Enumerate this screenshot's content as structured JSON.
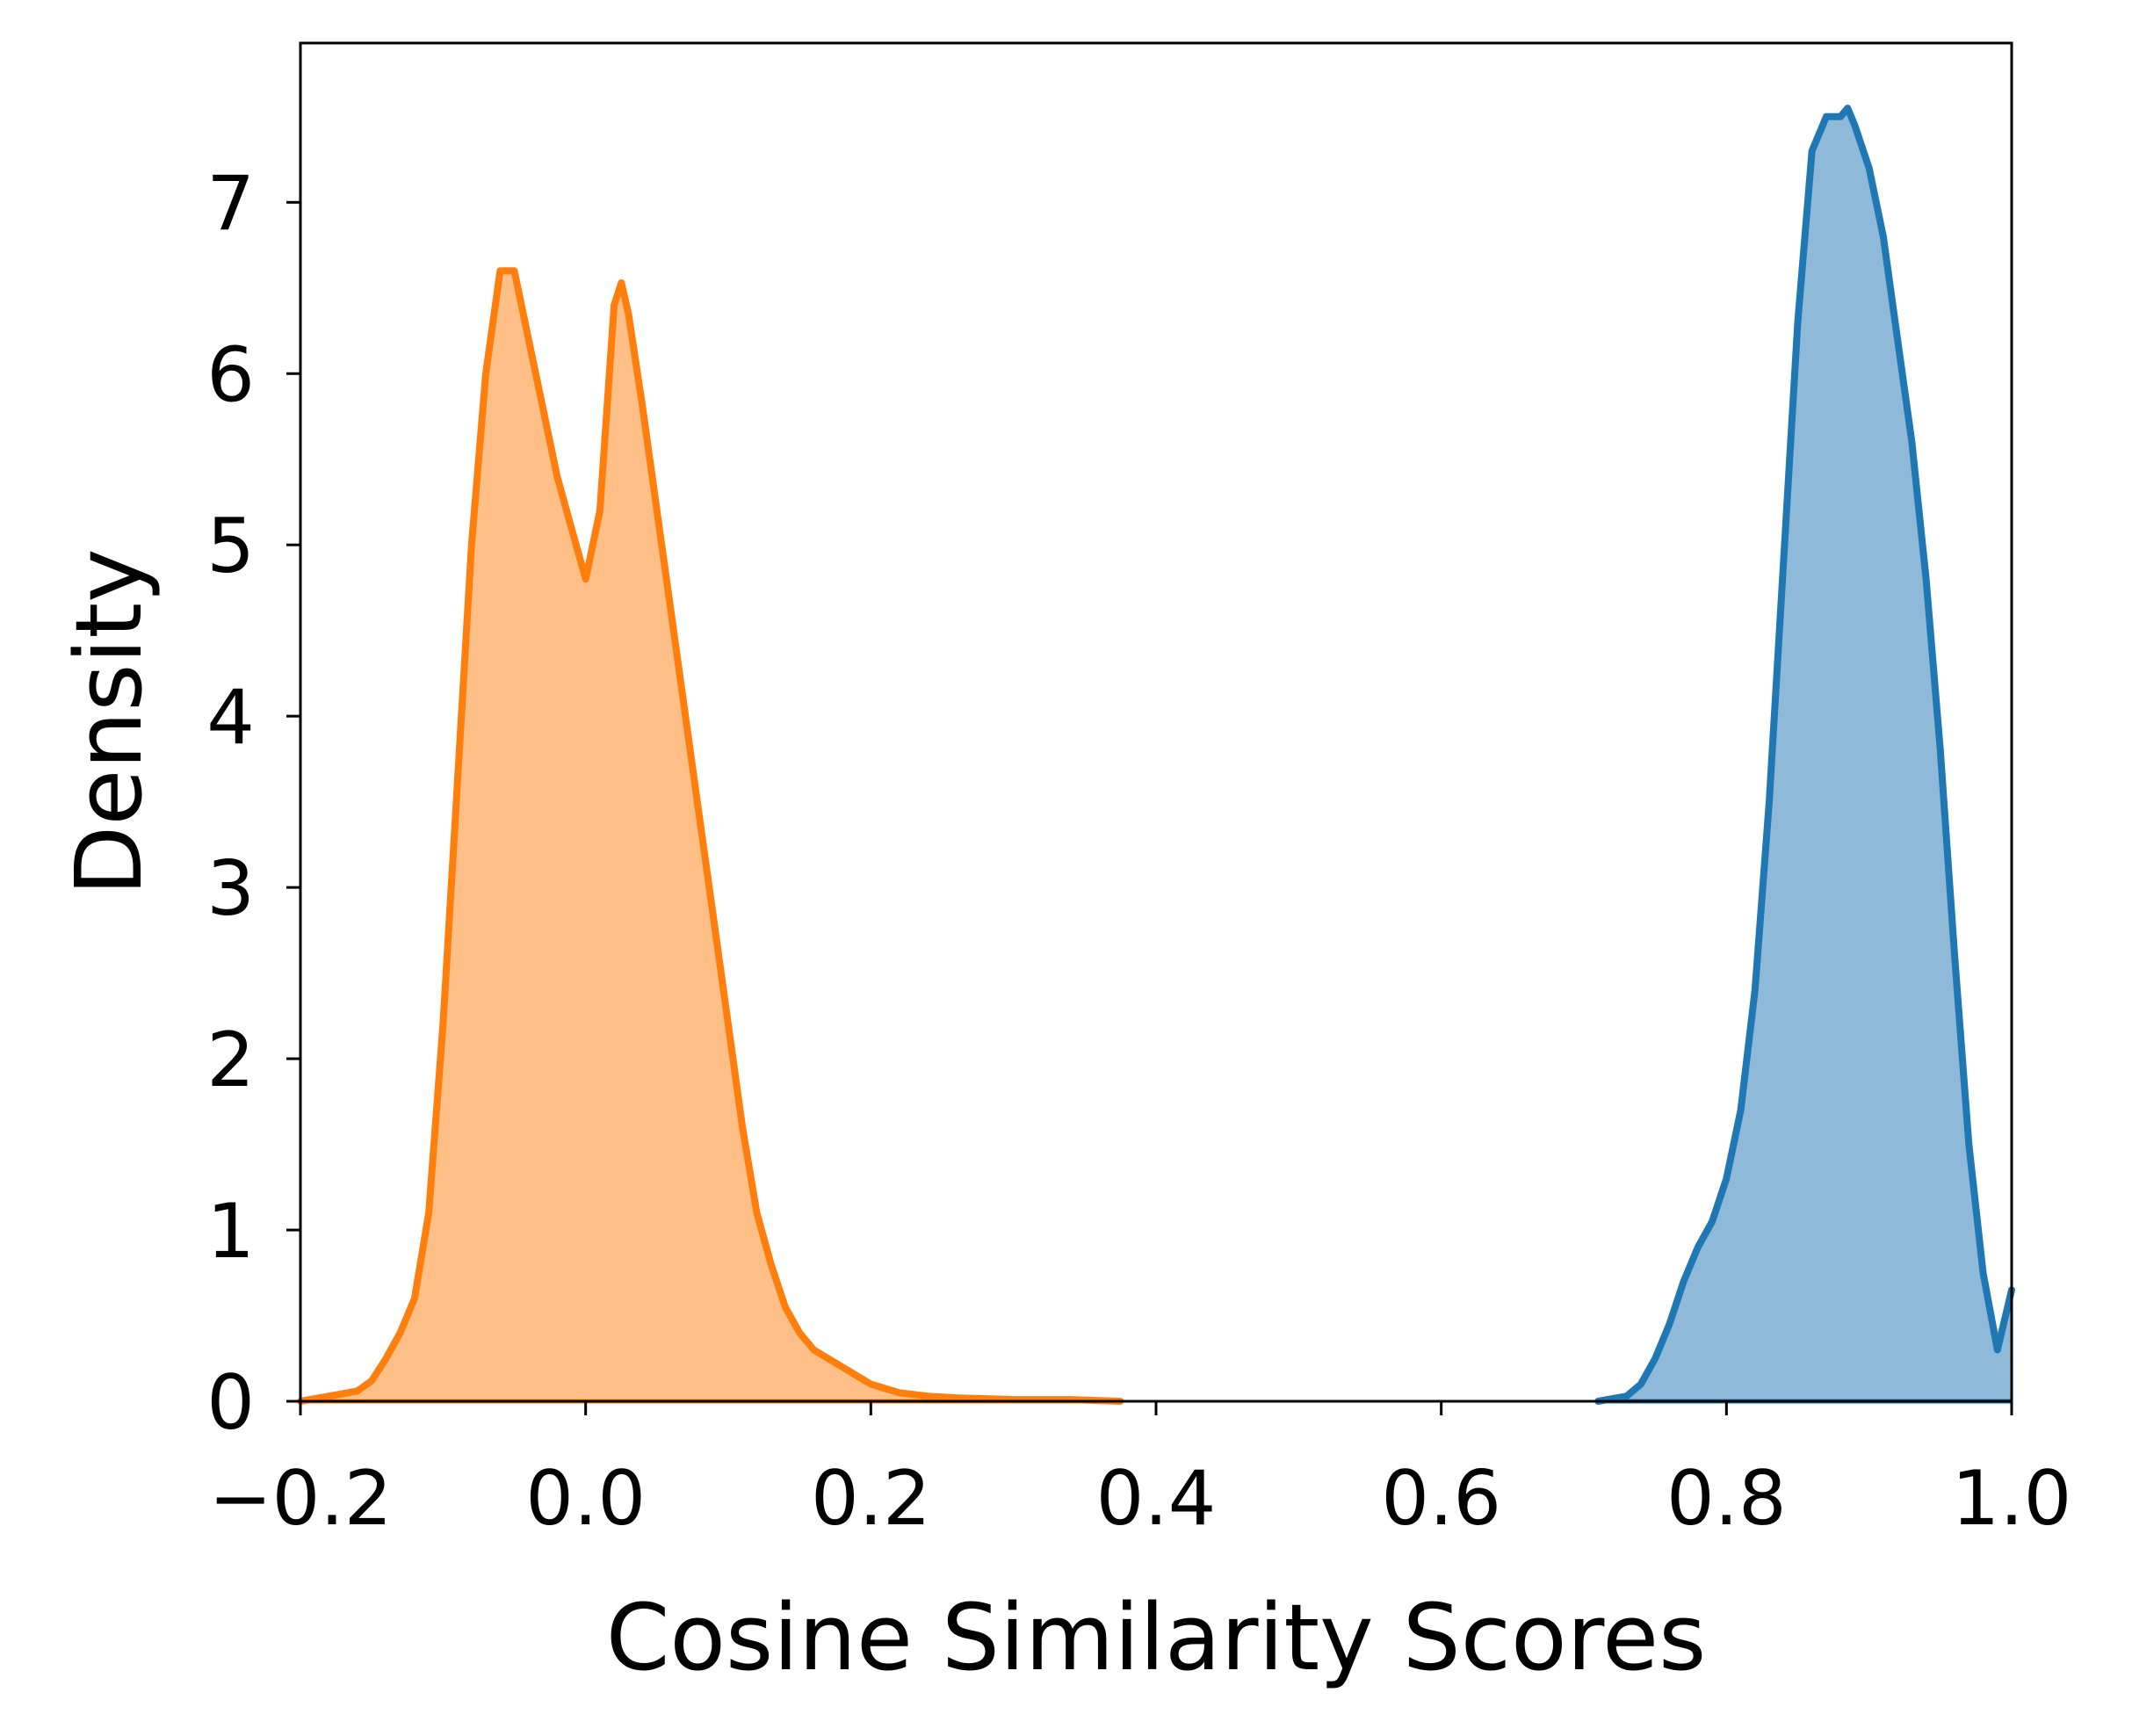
{
  "chart_data": {
    "type": "area",
    "title": "",
    "xlabel": "Cosine Similarity Scores",
    "ylabel": "Density",
    "xlim": [
      -0.2,
      1.0
    ],
    "ylim": [
      0,
      7.93
    ],
    "x_ticks": [
      {
        "value": -0.2,
        "label": "−0.2"
      },
      {
        "value": 0.0,
        "label": "0.0"
      },
      {
        "value": 0.2,
        "label": "0.2"
      },
      {
        "value": 0.4,
        "label": "0.4"
      },
      {
        "value": 0.6,
        "label": "0.6"
      },
      {
        "value": 0.8,
        "label": "0.8"
      },
      {
        "value": 1.0,
        "label": "1.0"
      }
    ],
    "y_ticks": [
      {
        "value": 0,
        "label": "0"
      },
      {
        "value": 1,
        "label": "1"
      },
      {
        "value": 2,
        "label": "2"
      },
      {
        "value": 3,
        "label": "3"
      },
      {
        "value": 4,
        "label": "4"
      },
      {
        "value": 5,
        "label": "5"
      },
      {
        "value": 6,
        "label": "6"
      },
      {
        "value": 7,
        "label": "7"
      }
    ],
    "grid": false,
    "legend": "none",
    "series": [
      {
        "color": "#ff7f0e",
        "fill": "#ffbf86",
        "x": [
          -0.2,
          -0.18,
          -0.16,
          -0.15,
          -0.14,
          -0.13,
          -0.12,
          -0.11,
          -0.1,
          -0.09,
          -0.08,
          -0.07,
          -0.06,
          -0.05,
          -0.04,
          -0.03,
          -0.02,
          -0.01,
          0.0,
          0.01,
          0.02,
          0.025,
          0.03,
          0.04,
          0.05,
          0.06,
          0.07,
          0.08,
          0.09,
          0.1,
          0.11,
          0.12,
          0.13,
          0.14,
          0.15,
          0.16,
          0.17,
          0.18,
          0.19,
          0.2,
          0.22,
          0.24,
          0.26,
          0.3,
          0.34,
          0.375
        ],
        "y": [
          0.0,
          0.03,
          0.06,
          0.12,
          0.25,
          0.4,
          0.6,
          1.1,
          2.2,
          3.6,
          5.0,
          6.0,
          6.6,
          6.6,
          6.2,
          5.8,
          5.4,
          5.1,
          4.8,
          5.2,
          6.4,
          6.53,
          6.35,
          5.8,
          5.2,
          4.6,
          4.0,
          3.4,
          2.8,
          2.2,
          1.6,
          1.1,
          0.8,
          0.55,
          0.4,
          0.3,
          0.25,
          0.2,
          0.15,
          0.1,
          0.05,
          0.03,
          0.02,
          0.01,
          0.01,
          0.0
        ]
      },
      {
        "color": "#1f77b4",
        "fill": "#8fb9d9",
        "x": [
          0.71,
          0.73,
          0.74,
          0.75,
          0.76,
          0.77,
          0.78,
          0.79,
          0.8,
          0.81,
          0.82,
          0.83,
          0.84,
          0.85,
          0.86,
          0.87,
          0.88,
          0.885,
          0.89,
          0.9,
          0.91,
          0.92,
          0.93,
          0.94,
          0.95,
          0.96,
          0.97,
          0.98,
          0.99,
          1.0
        ],
        "y": [
          0.0,
          0.03,
          0.1,
          0.25,
          0.45,
          0.7,
          0.9,
          1.05,
          1.3,
          1.7,
          2.4,
          3.5,
          4.9,
          6.3,
          7.3,
          7.5,
          7.5,
          7.55,
          7.45,
          7.2,
          6.8,
          6.2,
          5.6,
          4.8,
          3.8,
          2.6,
          1.5,
          0.75,
          0.3,
          0.65
        ]
      }
    ]
  }
}
